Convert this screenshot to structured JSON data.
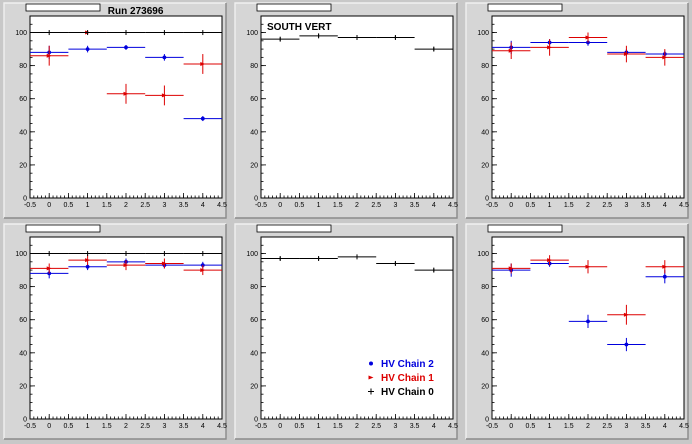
{
  "colors": {
    "HV Chain 2": "#0000dd",
    "HV Chain 1": "#dd0000",
    "HV Chain 0": "#000000"
  },
  "legend": {
    "entries": [
      {
        "name": "HV Chain 2",
        "color": "#0000dd",
        "marker": "circle"
      },
      {
        "name": "HV Chain 1",
        "color": "#dd0000",
        "marker": "arrow"
      },
      {
        "name": "HV Chain 0",
        "color": "#000000",
        "marker": "cross"
      }
    ]
  },
  "chart_data": [
    {
      "type": "scatter",
      "title": "",
      "annotation": "Run 273696",
      "xlim": [
        -0.5,
        4.5
      ],
      "ylim": [
        0,
        110
      ],
      "xticks": [
        "-0.5",
        "0",
        "0.5",
        "1",
        "1.5",
        "2",
        "2.5",
        "3",
        "3.5",
        "4",
        "4.5"
      ],
      "yticks": [
        "0",
        "20",
        "40",
        "60",
        "80",
        "100"
      ],
      "series": [
        {
          "name": "HV Chain 2",
          "x": [
            0,
            1,
            2,
            3,
            4
          ],
          "y": [
            88,
            90,
            91,
            85,
            48
          ],
          "yerr": [
            4,
            2,
            1.5,
            2,
            1.5
          ]
        },
        {
          "name": "HV Chain 1",
          "x": [
            0,
            1,
            2,
            3,
            4
          ],
          "y": [
            86,
            100,
            63,
            62,
            81
          ],
          "yerr": [
            6,
            1,
            6,
            6,
            6
          ]
        },
        {
          "name": "HV Chain 0",
          "x": [
            0,
            1,
            2,
            3,
            4
          ],
          "y": [
            100,
            100,
            100,
            100,
            100
          ],
          "yerr": [
            0,
            0,
            0,
            0,
            0
          ]
        }
      ]
    },
    {
      "type": "scatter",
      "title": "",
      "annotation": "SOUTH VERT",
      "xlim": [
        -0.5,
        4.5
      ],
      "ylim": [
        0,
        110
      ],
      "xticks": [
        "-0.5",
        "0",
        "0.5",
        "1",
        "1.5",
        "2",
        "2.5",
        "3",
        "3.5",
        "4",
        "4.5"
      ],
      "yticks": [
        "0",
        "20",
        "40",
        "60",
        "80",
        "100"
      ],
      "series": [
        {
          "name": "HV Chain 0",
          "x": [
            0,
            1,
            2,
            3,
            4
          ],
          "y": [
            96,
            98,
            97,
            97,
            90
          ],
          "yerr": [
            1,
            1,
            1,
            1,
            1
          ]
        }
      ]
    },
    {
      "type": "scatter",
      "title": "",
      "annotation": "",
      "xlim": [
        -0.5,
        4.5
      ],
      "ylim": [
        0,
        110
      ],
      "xticks": [
        "-0.5",
        "0",
        "0.5",
        "1",
        "1.5",
        "2",
        "2.5",
        "3",
        "3.5",
        "4",
        "4.5"
      ],
      "yticks": [
        "0",
        "20",
        "40",
        "60",
        "80",
        "100"
      ],
      "series": [
        {
          "name": "HV Chain 2",
          "x": [
            0,
            1,
            2,
            3,
            4
          ],
          "y": [
            91,
            94,
            94,
            88,
            87
          ],
          "yerr": [
            4,
            2,
            2,
            2,
            2
          ]
        },
        {
          "name": "HV Chain 1",
          "x": [
            0,
            1,
            2,
            3,
            4
          ],
          "y": [
            89,
            91,
            97,
            87,
            85
          ],
          "yerr": [
            5,
            5,
            3,
            5,
            5
          ]
        }
      ]
    },
    {
      "type": "scatter",
      "title": "",
      "annotation": "",
      "xlim": [
        -0.5,
        4.5
      ],
      "ylim": [
        0,
        110
      ],
      "xticks": [
        "-0.5",
        "0",
        "0.5",
        "1",
        "1.5",
        "2",
        "2.5",
        "3",
        "3.5",
        "4",
        "4.5"
      ],
      "yticks": [
        "0",
        "20",
        "40",
        "60",
        "80",
        "100"
      ],
      "series": [
        {
          "name": "HV Chain 2",
          "x": [
            0,
            1,
            2,
            3,
            4
          ],
          "y": [
            88,
            92,
            95,
            93,
            93
          ],
          "yerr": [
            3,
            2,
            2,
            2,
            2
          ]
        },
        {
          "name": "HV Chain 1",
          "x": [
            0,
            1,
            2,
            3,
            4
          ],
          "y": [
            91,
            96,
            93,
            94,
            90
          ],
          "yerr": [
            3,
            3,
            3,
            3,
            3
          ]
        },
        {
          "name": "HV Chain 0",
          "x": [
            0,
            1,
            2,
            3,
            4
          ],
          "y": [
            100,
            100,
            100,
            100,
            100
          ],
          "yerr": [
            0,
            0,
            0,
            0,
            0
          ]
        }
      ]
    },
    {
      "type": "scatter",
      "title": "",
      "annotation": "",
      "xlim": [
        -0.5,
        4.5
      ],
      "ylim": [
        0,
        110
      ],
      "xticks": [
        "-0.5",
        "0",
        "0.5",
        "1",
        "1.5",
        "2",
        "2.5",
        "3",
        "3.5",
        "4",
        "4.5"
      ],
      "yticks": [
        "0",
        "20",
        "40",
        "60",
        "80",
        "100"
      ],
      "series": [
        {
          "name": "HV Chain 0",
          "x": [
            0,
            1,
            2,
            3,
            4
          ],
          "y": [
            97,
            97,
            98,
            94,
            90
          ],
          "yerr": [
            1,
            1,
            1,
            1,
            1
          ]
        }
      ]
    },
    {
      "type": "scatter",
      "title": "",
      "annotation": "",
      "xlim": [
        -0.5,
        4.5
      ],
      "ylim": [
        0,
        110
      ],
      "xticks": [
        "-0.5",
        "0",
        "0.5",
        "1",
        "1.5",
        "2",
        "2.5",
        "3",
        "3.5",
        "4",
        "4.5"
      ],
      "yticks": [
        "0",
        "20",
        "40",
        "60",
        "80",
        "100"
      ],
      "series": [
        {
          "name": "HV Chain 2",
          "x": [
            0,
            1,
            2,
            3,
            4
          ],
          "y": [
            90,
            94,
            59,
            45,
            86
          ],
          "yerr": [
            4,
            2,
            4,
            4,
            4
          ]
        },
        {
          "name": "HV Chain 1",
          "x": [
            0,
            1,
            2,
            3,
            4
          ],
          "y": [
            91,
            96,
            92,
            63,
            92
          ],
          "yerr": [
            3,
            3,
            4,
            6,
            4
          ]
        }
      ]
    }
  ]
}
